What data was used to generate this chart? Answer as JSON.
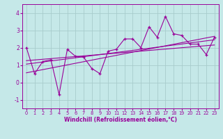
{
  "title": "",
  "xlabel": "Windchill (Refroidissement éolien,°C)",
  "ylabel": "",
  "bg_color": "#c5e8e8",
  "line_color": "#990099",
  "grid_color": "#a8cccc",
  "xlim": [
    -0.5,
    23.5
  ],
  "ylim": [
    -1.5,
    4.5
  ],
  "yticks": [
    -1,
    0,
    1,
    2,
    3,
    4
  ],
  "xticks": [
    0,
    1,
    2,
    3,
    4,
    5,
    6,
    7,
    8,
    9,
    10,
    11,
    12,
    13,
    14,
    15,
    16,
    17,
    18,
    19,
    20,
    21,
    22,
    23
  ],
  "data_x": [
    0,
    1,
    2,
    3,
    4,
    5,
    6,
    7,
    8,
    9,
    10,
    11,
    12,
    13,
    14,
    15,
    16,
    17,
    18,
    19,
    20,
    21,
    22,
    23
  ],
  "data_y": [
    2.0,
    0.5,
    1.2,
    1.3,
    -0.7,
    1.9,
    1.5,
    1.45,
    0.8,
    0.5,
    1.8,
    1.9,
    2.5,
    2.5,
    2.0,
    3.2,
    2.6,
    3.8,
    2.8,
    2.7,
    2.2,
    2.2,
    1.6,
    2.6
  ],
  "trend1_x": [
    0,
    23
  ],
  "trend1_y": [
    1.05,
    2.45
  ],
  "trend2_x": [
    0,
    23
  ],
  "trend2_y": [
    1.25,
    2.15
  ],
  "trend3_x": [
    0,
    23
  ],
  "trend3_y": [
    0.55,
    2.65
  ],
  "xlabel_fontsize": 5.5,
  "tick_fontsize": 5.5,
  "xlabel_bold": true
}
